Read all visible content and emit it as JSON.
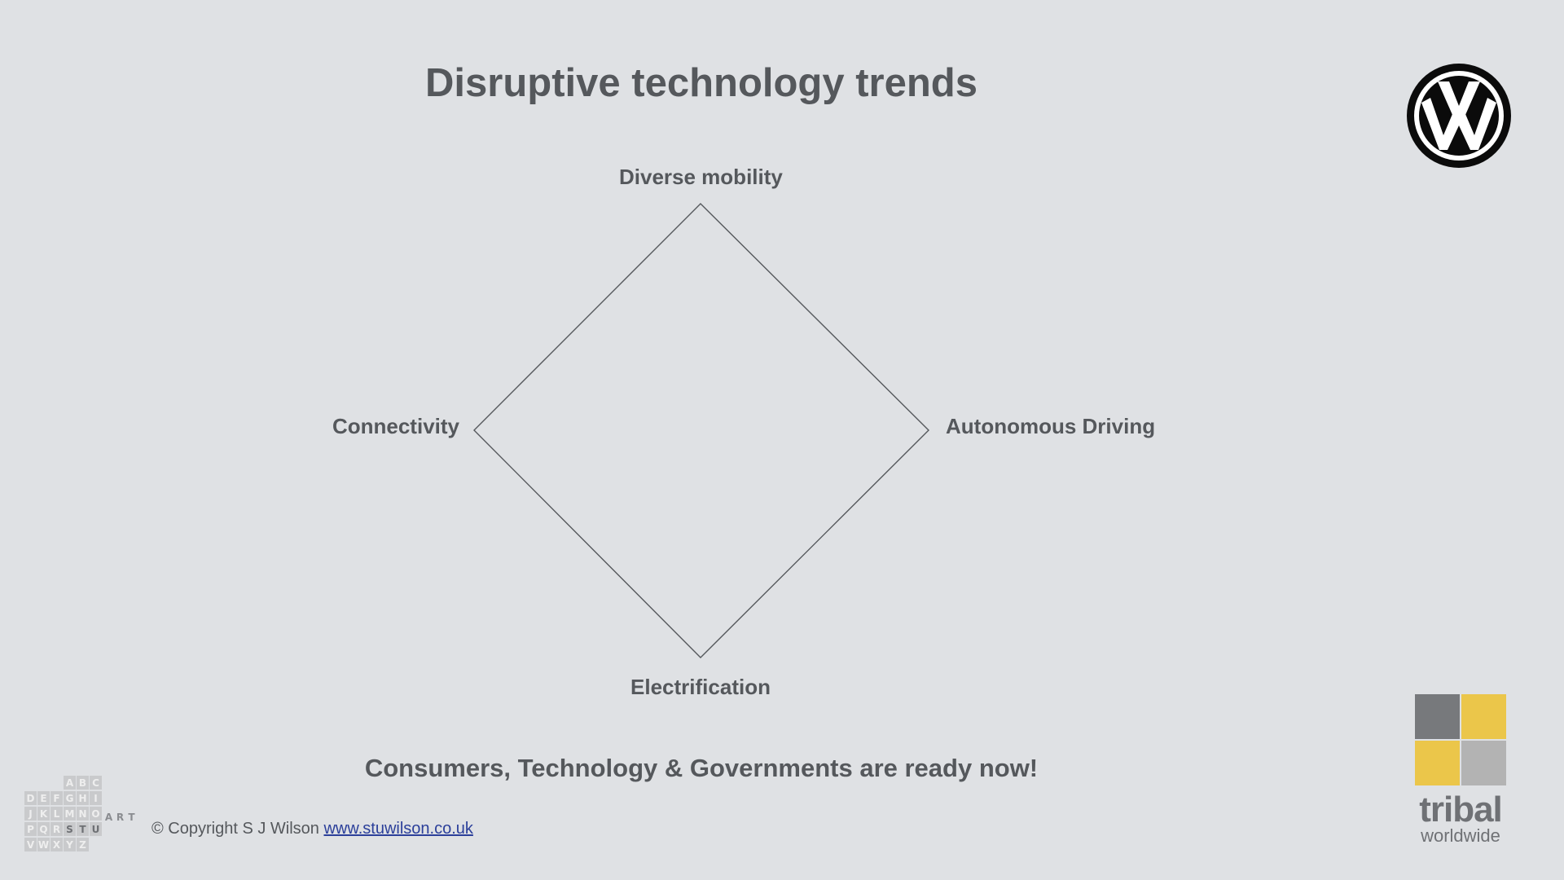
{
  "slide": {
    "title": "Disruptive technology trends",
    "tagline": "Consumers, Technology & Governments are ready now!"
  },
  "diagram": {
    "nodes": {
      "top": "Diverse mobility",
      "right": "Autonomous Driving",
      "bottom": "Electrification",
      "left": "Connectivity"
    }
  },
  "footer": {
    "copyright": "© Copyright S J Wilson",
    "link_text": "www.stuwilson.co.uk"
  },
  "logos": {
    "vw": {
      "icon": "vw-logo-icon"
    },
    "tribal": {
      "word": "tribal",
      "sub": "worldwide",
      "colors": [
        "#77797c",
        "#ebc64a",
        "#ebc64a",
        "#b3b3b3"
      ]
    },
    "stuart": {
      "icon": "alphabet-grid-icon",
      "rows": [
        "ABC",
        "DEFGHI",
        "JKLMNO",
        "PQRSTU",
        "VWXYZ"
      ],
      "word": "STUART"
    }
  },
  "colors": {
    "background": "#dfe1e4",
    "text": "#55585c",
    "link": "#2b3f9a"
  }
}
